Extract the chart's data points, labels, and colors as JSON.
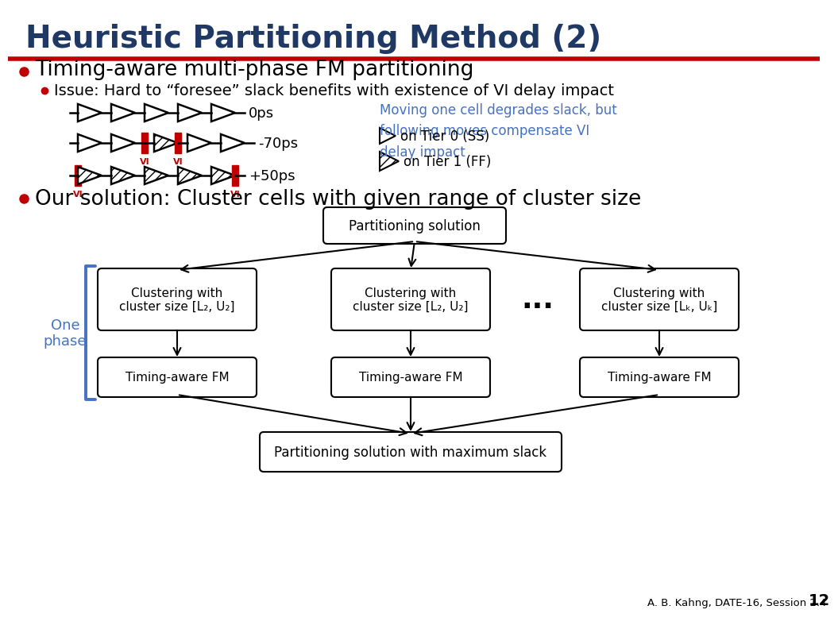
{
  "title": "Heuristic Partitioning Method (2)",
  "title_color": "#1F3864",
  "accent_color": "#C00000",
  "blue_accent": "#4472C4",
  "bg_color": "#FFFFFF",
  "bullet1": "Timing-aware multi-phase FM partitioning",
  "bullet1_sub": "Issue: Hard to “foresee” slack benefits with existence of VI delay impact",
  "side_note": "Moving one cell degrades slack, but\nfollowing moves compensate VI\ndelay impact",
  "tier0_label": "on Tier 0 (SS)",
  "tier1_label": "on Tier 1 (FF)",
  "bullet2": "Our solution: Cluster cells with given range of cluster size",
  "one_phase": "One\nphase",
  "box_top": "Partitioning solution",
  "box_cluster1": "Clustering with\ncluster size [L₂, U₂]",
  "box_cluster2": "Clustering with\ncluster size [L₂, U₂]",
  "box_cluster3": "Clustering with\ncluster size [Lₖ, Uₖ]",
  "box_fm1": "Timing-aware FM",
  "box_fm2": "Timing-aware FM",
  "box_fm3": "Timing-aware FM",
  "box_bottom": "Partitioning solution with maximum slack",
  "footer": "A. B. Kahng, DATE-16, Session 2.4",
  "page_num": "12",
  "row_label_0": "0ps",
  "row_label_1": "-70ps",
  "row_label_2": "+50ps"
}
